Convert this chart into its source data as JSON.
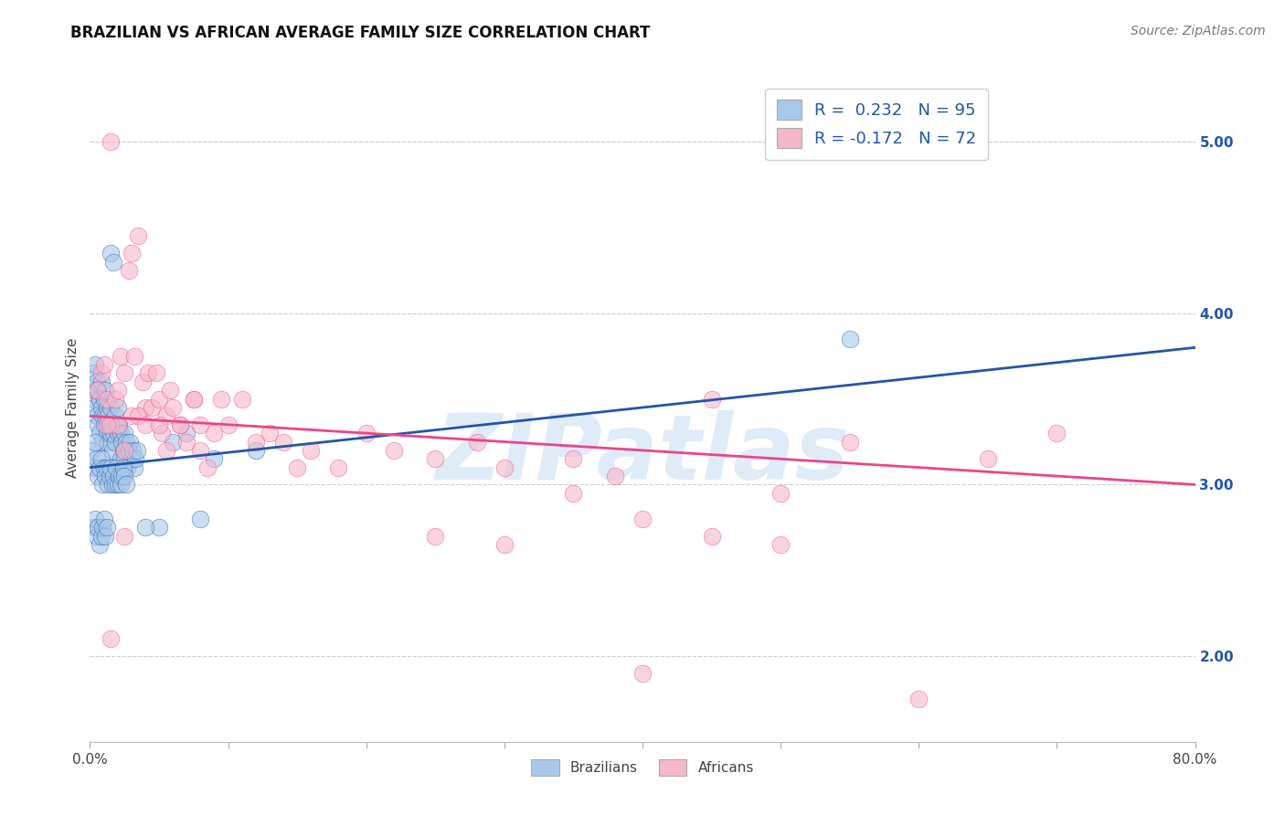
{
  "title": "BRAZILIAN VS AFRICAN AVERAGE FAMILY SIZE CORRELATION CHART",
  "source": "Source: ZipAtlas.com",
  "ylabel": "Average Family Size",
  "watermark": "ZIPatlas",
  "legend_r_blue": "R =  0.232",
  "legend_n_blue": "N = 95",
  "legend_r_pink": "R = -0.172",
  "legend_n_pink": "N = 72",
  "blue_color": "#A8C8E8",
  "pink_color": "#F5B8C8",
  "blue_line_color": "#2255AA",
  "pink_line_color": "#EE4488",
  "blue_scatter": [
    [
      0.002,
      3.55
    ],
    [
      0.003,
      3.65
    ],
    [
      0.003,
      3.5
    ],
    [
      0.004,
      3.7
    ],
    [
      0.004,
      3.45
    ],
    [
      0.005,
      3.6
    ],
    [
      0.005,
      3.4
    ],
    [
      0.006,
      3.55
    ],
    [
      0.006,
      3.35
    ],
    [
      0.007,
      3.5
    ],
    [
      0.007,
      3.3
    ],
    [
      0.008,
      3.45
    ],
    [
      0.008,
      3.6
    ],
    [
      0.009,
      3.4
    ],
    [
      0.009,
      3.25
    ],
    [
      0.01,
      3.35
    ],
    [
      0.01,
      3.5
    ],
    [
      0.011,
      3.4
    ],
    [
      0.011,
      3.55
    ],
    [
      0.012,
      3.45
    ],
    [
      0.012,
      3.3
    ],
    [
      0.013,
      3.4
    ],
    [
      0.013,
      3.25
    ],
    [
      0.014,
      3.35
    ],
    [
      0.015,
      3.3
    ],
    [
      0.015,
      3.45
    ],
    [
      0.016,
      3.35
    ],
    [
      0.016,
      3.2
    ],
    [
      0.017,
      3.3
    ],
    [
      0.018,
      3.4
    ],
    [
      0.018,
      3.25
    ],
    [
      0.019,
      3.35
    ],
    [
      0.02,
      3.3
    ],
    [
      0.02,
      3.45
    ],
    [
      0.021,
      3.35
    ],
    [
      0.022,
      3.3
    ],
    [
      0.022,
      3.15
    ],
    [
      0.023,
      3.25
    ],
    [
      0.024,
      3.2
    ],
    [
      0.025,
      3.3
    ],
    [
      0.025,
      3.15
    ],
    [
      0.026,
      3.25
    ],
    [
      0.027,
      3.1
    ],
    [
      0.028,
      3.2
    ],
    [
      0.029,
      3.25
    ],
    [
      0.03,
      3.15
    ],
    [
      0.031,
      3.2
    ],
    [
      0.032,
      3.1
    ],
    [
      0.033,
      3.15
    ],
    [
      0.034,
      3.2
    ],
    [
      0.002,
      3.2
    ],
    [
      0.003,
      3.1
    ],
    [
      0.004,
      3.25
    ],
    [
      0.005,
      3.15
    ],
    [
      0.006,
      3.05
    ],
    [
      0.007,
      3.1
    ],
    [
      0.008,
      3.15
    ],
    [
      0.009,
      3.0
    ],
    [
      0.01,
      3.1
    ],
    [
      0.011,
      3.05
    ],
    [
      0.012,
      3.1
    ],
    [
      0.013,
      3.0
    ],
    [
      0.014,
      3.05
    ],
    [
      0.015,
      3.1
    ],
    [
      0.016,
      3.0
    ],
    [
      0.017,
      3.05
    ],
    [
      0.018,
      3.0
    ],
    [
      0.019,
      3.1
    ],
    [
      0.02,
      3.0
    ],
    [
      0.021,
      3.05
    ],
    [
      0.022,
      3.0
    ],
    [
      0.023,
      3.05
    ],
    [
      0.024,
      3.1
    ],
    [
      0.025,
      3.05
    ],
    [
      0.026,
      3.0
    ],
    [
      0.003,
      2.75
    ],
    [
      0.004,
      2.8
    ],
    [
      0.005,
      2.7
    ],
    [
      0.006,
      2.75
    ],
    [
      0.007,
      2.65
    ],
    [
      0.008,
      2.7
    ],
    [
      0.009,
      2.75
    ],
    [
      0.01,
      2.8
    ],
    [
      0.011,
      2.7
    ],
    [
      0.012,
      2.75
    ],
    [
      0.015,
      4.35
    ],
    [
      0.017,
      4.3
    ],
    [
      0.06,
      3.25
    ],
    [
      0.07,
      3.3
    ],
    [
      0.09,
      3.15
    ],
    [
      0.12,
      3.2
    ],
    [
      0.05,
      2.75
    ],
    [
      0.08,
      2.8
    ],
    [
      0.55,
      3.85
    ],
    [
      0.04,
      2.75
    ]
  ],
  "pink_scatter": [
    [
      0.005,
      3.55
    ],
    [
      0.008,
      3.65
    ],
    [
      0.01,
      3.7
    ],
    [
      0.012,
      3.5
    ],
    [
      0.015,
      5.0
    ],
    [
      0.018,
      3.5
    ],
    [
      0.02,
      3.55
    ],
    [
      0.022,
      3.75
    ],
    [
      0.025,
      3.65
    ],
    [
      0.028,
      4.25
    ],
    [
      0.03,
      4.35
    ],
    [
      0.032,
      3.75
    ],
    [
      0.035,
      4.45
    ],
    [
      0.038,
      3.6
    ],
    [
      0.04,
      3.45
    ],
    [
      0.042,
      3.65
    ],
    [
      0.045,
      3.45
    ],
    [
      0.048,
      3.65
    ],
    [
      0.05,
      3.5
    ],
    [
      0.052,
      3.3
    ],
    [
      0.055,
      3.4
    ],
    [
      0.058,
      3.55
    ],
    [
      0.06,
      3.45
    ],
    [
      0.065,
      3.35
    ],
    [
      0.07,
      3.25
    ],
    [
      0.075,
      3.5
    ],
    [
      0.08,
      3.2
    ],
    [
      0.085,
      3.1
    ],
    [
      0.09,
      3.3
    ],
    [
      0.095,
      3.5
    ],
    [
      0.1,
      3.35
    ],
    [
      0.11,
      3.5
    ],
    [
      0.12,
      3.25
    ],
    [
      0.13,
      3.3
    ],
    [
      0.14,
      3.25
    ],
    [
      0.15,
      3.1
    ],
    [
      0.16,
      3.2
    ],
    [
      0.18,
      3.1
    ],
    [
      0.2,
      3.3
    ],
    [
      0.22,
      3.2
    ],
    [
      0.25,
      3.15
    ],
    [
      0.28,
      3.25
    ],
    [
      0.3,
      3.1
    ],
    [
      0.35,
      3.15
    ],
    [
      0.38,
      3.05
    ],
    [
      0.015,
      2.1
    ],
    [
      0.025,
      2.7
    ],
    [
      0.3,
      2.65
    ],
    [
      0.45,
      2.7
    ],
    [
      0.5,
      2.65
    ],
    [
      0.4,
      1.9
    ],
    [
      0.6,
      1.75
    ],
    [
      0.015,
      3.35
    ],
    [
      0.02,
      3.35
    ],
    [
      0.025,
      3.2
    ],
    [
      0.03,
      3.4
    ],
    [
      0.035,
      3.4
    ],
    [
      0.04,
      3.35
    ],
    [
      0.05,
      3.35
    ],
    [
      0.055,
      3.2
    ],
    [
      0.065,
      3.35
    ],
    [
      0.075,
      3.5
    ],
    [
      0.08,
      3.35
    ],
    [
      0.012,
      3.35
    ],
    [
      0.55,
      3.25
    ],
    [
      0.65,
      3.15
    ],
    [
      0.4,
      2.8
    ],
    [
      0.5,
      2.95
    ],
    [
      0.45,
      3.5
    ],
    [
      0.7,
      3.3
    ],
    [
      0.25,
      2.7
    ],
    [
      0.35,
      2.95
    ]
  ],
  "xlim": [
    0.0,
    0.8
  ],
  "ylim": [
    1.5,
    5.4
  ],
  "yticks_right": [
    2.0,
    3.0,
    4.0,
    5.0
  ],
  "xticks": [
    0.0,
    0.1,
    0.2,
    0.3,
    0.4,
    0.5,
    0.6,
    0.7,
    0.8
  ],
  "xtick_labels": [
    "0.0%",
    "",
    "",
    "",
    "",
    "",
    "",
    "",
    "80.0%"
  ],
  "blue_trend": [
    3.1,
    3.8
  ],
  "pink_trend": [
    3.4,
    3.0
  ],
  "background_color": "#ffffff",
  "grid_color": "#cccccc"
}
